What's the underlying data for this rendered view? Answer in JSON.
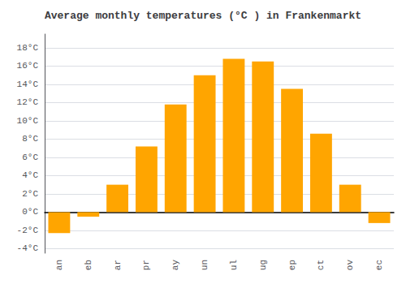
{
  "chart_data": {
    "type": "bar",
    "title": "Average monthly temperatures (°C ) in Frankenmarkt",
    "categories": [
      "an",
      "eb",
      "ar",
      "pr",
      "ay",
      "un",
      "ul",
      "ug",
      "ep",
      "ct",
      "ov",
      "ec"
    ],
    "values": [
      -2.3,
      -0.5,
      3.0,
      7.2,
      11.8,
      15.0,
      16.8,
      16.5,
      13.5,
      8.6,
      3.0,
      -1.2
    ],
    "color": "#FFA500",
    "ylim": [
      -4.5,
      19.5
    ],
    "yticks": [
      {
        "value": -4,
        "label": "-4°C"
      },
      {
        "value": -2,
        "label": "-2°C"
      },
      {
        "value": 0,
        "label": "0°C"
      },
      {
        "value": 2,
        "label": "2°C"
      },
      {
        "value": 4,
        "label": "4°C"
      },
      {
        "value": 6,
        "label": "6°C"
      },
      {
        "value": 8,
        "label": "8°C"
      },
      {
        "value": 10,
        "label": "10°C"
      },
      {
        "value": 12,
        "label": "12°C"
      },
      {
        "value": 14,
        "label": "14°C"
      },
      {
        "value": 16,
        "label": "16°C"
      },
      {
        "value": 18,
        "label": "18°C"
      }
    ],
    "grid": true
  }
}
